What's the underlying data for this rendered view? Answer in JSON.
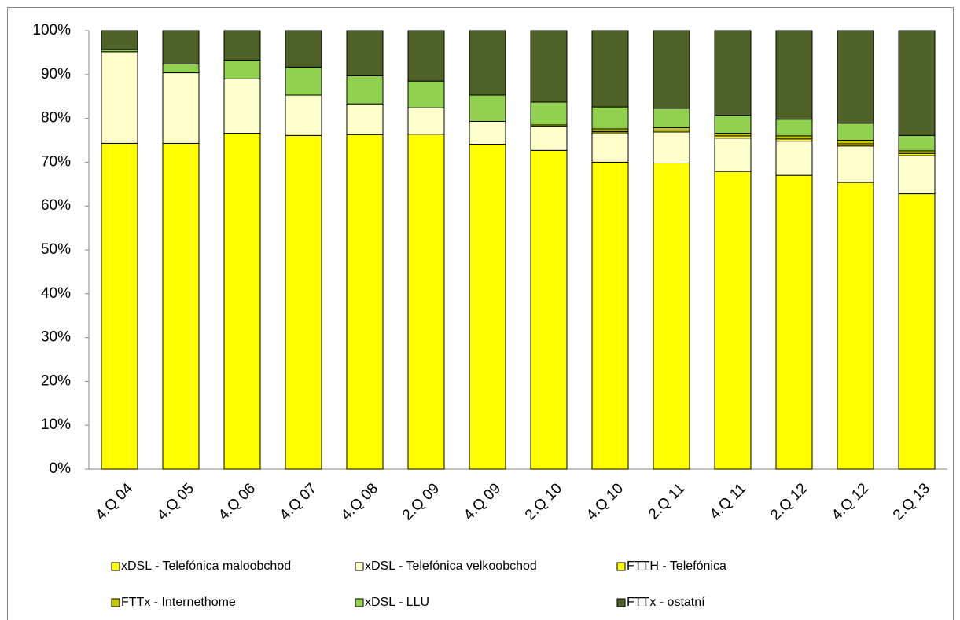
{
  "chart_data": {
    "type": "stacked_bar",
    "categories": [
      "4.Q 04",
      "4.Q 05",
      "4.Q 06",
      "4.Q 07",
      "4.Q 08",
      "2.Q 09",
      "4.Q 09",
      "2.Q 10",
      "4.Q 10",
      "2.Q 11",
      "4.Q 11",
      "2.Q 12",
      "4.Q 12",
      "2.Q 13"
    ],
    "series": [
      {
        "name": "xDSL - Telefónica maloobchod",
        "color": "#ffff00",
        "values": [
          74.3,
          74.3,
          76.6,
          76.1,
          76.3,
          76.4,
          74.1,
          72.7,
          70.0,
          69.8,
          67.9,
          67.0,
          65.4,
          62.8
        ]
      },
      {
        "name": "xDSL - Telefónica velkoobchod",
        "color": "#ffffcc",
        "values": [
          20.9,
          16.1,
          12.4,
          9.2,
          7.0,
          6.0,
          5.2,
          5.5,
          6.7,
          7.1,
          7.6,
          7.8,
          8.3,
          8.7
        ]
      },
      {
        "name": "FTTH - Telefónica",
        "color": "#ffff00",
        "values": [
          0,
          0,
          0,
          0,
          0,
          0,
          0,
          0,
          0.3,
          0.4,
          0.5,
          0.5,
          0.5,
          0.5
        ]
      },
      {
        "name": "FTTx - Internethome",
        "color": "#c8c800",
        "values": [
          0,
          0,
          0,
          0,
          0,
          0,
          0,
          0.3,
          0.6,
          0.6,
          0.6,
          0.7,
          0.8,
          0.6
        ]
      },
      {
        "name": "xDSL - LLU",
        "color": "#92d050",
        "values": [
          0.5,
          2.0,
          4.3,
          6.4,
          6.4,
          6.1,
          6.0,
          5.2,
          5.0,
          4.4,
          4.1,
          3.8,
          3.9,
          3.5
        ]
      },
      {
        "name": "FTTx - ostatní",
        "color": "#4f6228",
        "values": [
          4.3,
          7.6,
          6.7,
          8.3,
          10.3,
          11.5,
          14.7,
          16.3,
          17.4,
          17.7,
          19.3,
          20.2,
          21.1,
          23.9
        ]
      }
    ],
    "ylim": [
      0,
      100
    ],
    "yticks": [
      {
        "value": 0,
        "label": "0%"
      },
      {
        "value": 10,
        "label": "10%"
      },
      {
        "value": 20,
        "label": "20%"
      },
      {
        "value": 30,
        "label": "30%"
      },
      {
        "value": 40,
        "label": "40%"
      },
      {
        "value": 50,
        "label": "50%"
      },
      {
        "value": 60,
        "label": "60%"
      },
      {
        "value": 70,
        "label": "70%"
      },
      {
        "value": 80,
        "label": "80%"
      },
      {
        "value": 90,
        "label": "90%"
      },
      {
        "value": 100,
        "label": "100%"
      }
    ],
    "legend": "bottom"
  }
}
